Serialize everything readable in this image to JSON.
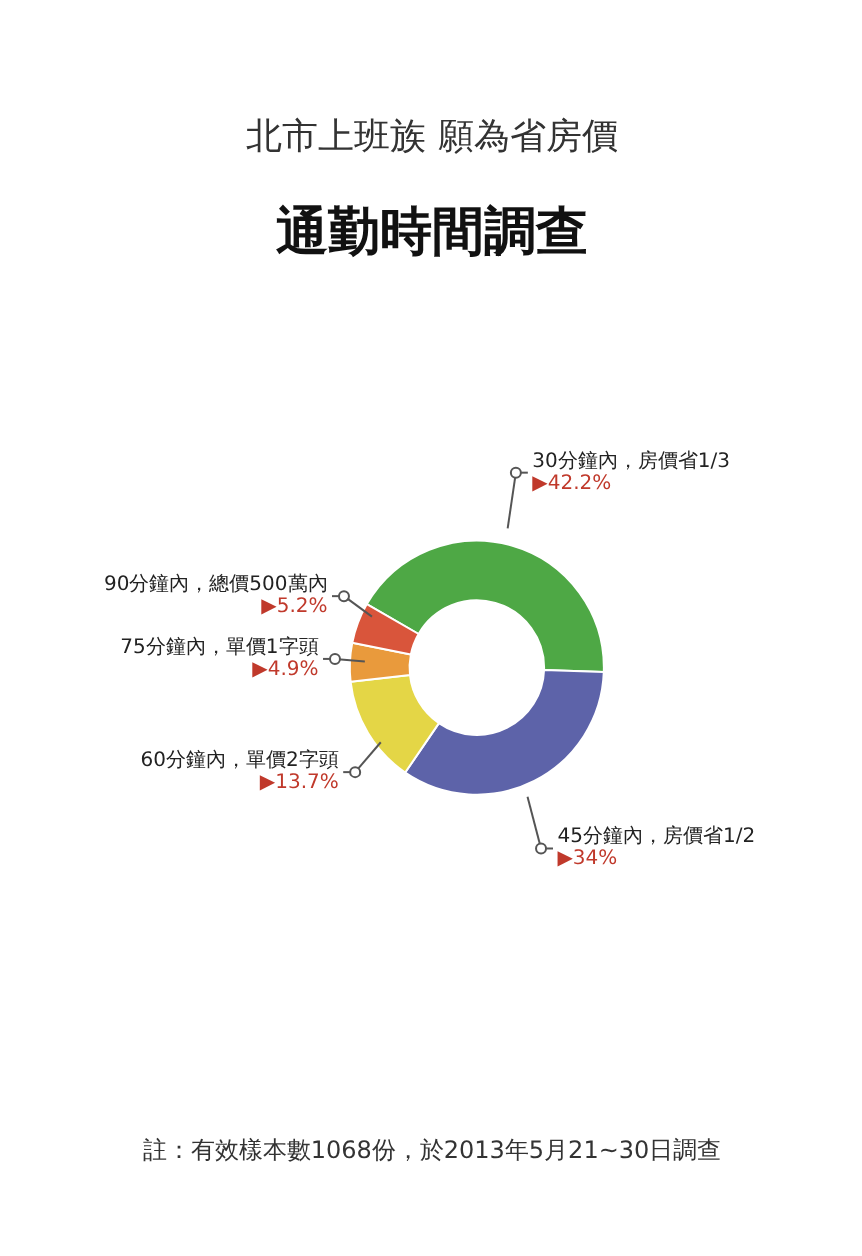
{
  "chart_data": {
    "type": "donut",
    "title": "通勤時間調查",
    "subtitle": "北市上班族 願為省房價",
    "categories": [
      "30分鐘內，房價省1/3",
      "45分鐘內，房價省1/2",
      "60分鐘內，單價2字頭",
      "75分鐘內，單價1字頭",
      "90分鐘內，總價500萬內"
    ],
    "values": [
      42.2,
      34,
      13.7,
      4.9,
      5.2
    ],
    "colors": [
      "#4ea845",
      "#5d63a9",
      "#e4d646",
      "#e99a3c",
      "#d9553b"
    ],
    "value_labels": [
      "▶42.2%",
      "▶34%",
      "▶13.7%",
      "▶4.9%",
      "▶5.2%"
    ],
    "annotations": [
      "註：有效樣本數1068份，於2013年5月21~30日調查"
    ]
  }
}
